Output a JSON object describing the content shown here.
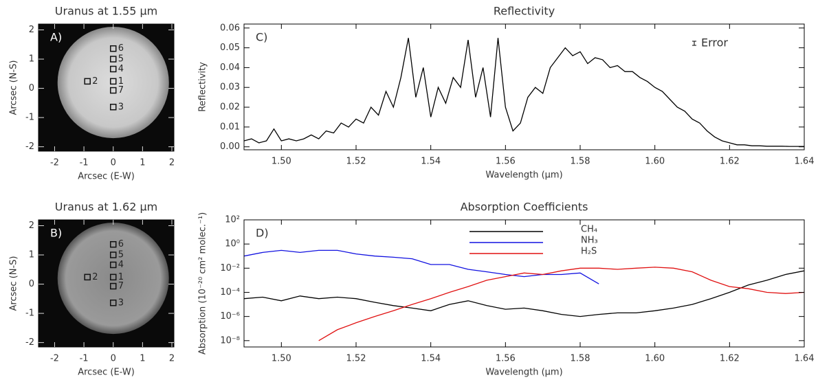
{
  "chart_data": [
    {
      "type": "image",
      "title": "Uranus at 1.55 μm",
      "panel": "A)",
      "xlabel": "Arcsec (E-W)",
      "ylabel": "Arcsec (N-S)",
      "xlim": [
        -2.55,
        2.07
      ],
      "ylim": [
        -2.15,
        2.2
      ],
      "xticks": [
        -2,
        -1,
        0,
        1,
        2
      ],
      "yticks": [
        -2,
        -1,
        0,
        1,
        2
      ],
      "points": [
        {
          "label": "6",
          "x": 0,
          "y": 1.36
        },
        {
          "label": "5",
          "x": 0,
          "y": 1.0
        },
        {
          "label": "4",
          "x": 0,
          "y": 0.66
        },
        {
          "label": "2",
          "x": -0.88,
          "y": 0.24
        },
        {
          "label": "1",
          "x": 0,
          "y": 0.24
        },
        {
          "label": "7",
          "x": 0,
          "y": -0.07
        },
        {
          "label": "3",
          "x": 0,
          "y": -0.64
        }
      ]
    },
    {
      "type": "image",
      "title": "Uranus at 1.62 μm",
      "panel": "B)",
      "xlabel": "Arcsec (E-W)",
      "ylabel": "Arcsec (N-S)",
      "xlim": [
        -2.55,
        2.07
      ],
      "ylim": [
        -2.15,
        2.2
      ],
      "xticks": [
        -2,
        -1,
        0,
        1,
        2
      ],
      "yticks": [
        -2,
        -1,
        0,
        1,
        2
      ],
      "points": [
        {
          "label": "6",
          "x": 0,
          "y": 1.36
        },
        {
          "label": "5",
          "x": 0,
          "y": 1.0
        },
        {
          "label": "4",
          "x": 0,
          "y": 0.66
        },
        {
          "label": "2",
          "x": -0.88,
          "y": 0.24
        },
        {
          "label": "1",
          "x": 0,
          "y": 0.24
        },
        {
          "label": "7",
          "x": 0,
          "y": -0.07
        },
        {
          "label": "3",
          "x": 0,
          "y": -0.64
        }
      ]
    },
    {
      "type": "line",
      "title": "Reflectivity",
      "panel": "C)",
      "xlabel": "Wavelength (μm)",
      "ylabel": "Reflectivity",
      "annotation": "Error",
      "xlim": [
        1.49,
        1.64
      ],
      "ylim": [
        -0.0015,
        0.062
      ],
      "xticks": [
        {
          "value": 1.5,
          "label": "1.50"
        },
        1.52,
        1.54,
        1.56,
        1.58,
        {
          "value": 1.6,
          "label": "1.60"
        },
        1.62,
        1.64
      ],
      "yticks": [
        {
          "value": 0,
          "label": "0.00"
        },
        0.01,
        0.02,
        0.03,
        0.04,
        0.05,
        0.06
      ],
      "color": "#000000",
      "x": [
        1.49,
        1.492,
        1.494,
        1.496,
        1.498,
        1.5,
        1.502,
        1.504,
        1.506,
        1.508,
        1.51,
        1.512,
        1.514,
        1.516,
        1.518,
        1.52,
        1.522,
        1.524,
        1.526,
        1.528,
        1.53,
        1.532,
        1.534,
        1.536,
        1.538,
        1.54,
        1.542,
        1.544,
        1.546,
        1.548,
        1.55,
        1.552,
        1.554,
        1.556,
        1.558,
        1.56,
        1.562,
        1.564,
        1.566,
        1.568,
        1.57,
        1.572,
        1.574,
        1.576,
        1.578,
        1.58,
        1.582,
        1.584,
        1.586,
        1.588,
        1.59,
        1.592,
        1.594,
        1.596,
        1.598,
        1.6,
        1.602,
        1.604,
        1.606,
        1.608,
        1.61,
        1.612,
        1.614,
        1.616,
        1.618,
        1.62,
        1.622,
        1.624,
        1.626,
        1.628,
        1.63,
        1.632,
        1.634,
        1.636,
        1.638,
        1.64
      ],
      "values": [
        0.003,
        0.004,
        0.002,
        0.003,
        0.009,
        0.003,
        0.004,
        0.003,
        0.004,
        0.006,
        0.004,
        0.008,
        0.007,
        0.012,
        0.01,
        0.014,
        0.012,
        0.02,
        0.016,
        0.028,
        0.02,
        0.035,
        0.055,
        0.025,
        0.04,
        0.015,
        0.03,
        0.022,
        0.035,
        0.03,
        0.054,
        0.025,
        0.04,
        0.015,
        0.055,
        0.02,
        0.008,
        0.012,
        0.025,
        0.03,
        0.027,
        0.04,
        0.045,
        0.05,
        0.046,
        0.048,
        0.042,
        0.045,
        0.044,
        0.04,
        0.041,
        0.038,
        0.038,
        0.035,
        0.033,
        0.03,
        0.028,
        0.024,
        0.02,
        0.018,
        0.014,
        0.012,
        0.008,
        0.005,
        0.003,
        0.002,
        0.001,
        0.001,
        0.0005,
        0.0005,
        0.0003,
        0.0003,
        0.0003,
        0.0002,
        0.0002,
        0.0002
      ]
    },
    {
      "type": "line",
      "title": "Absorption Coefficients",
      "panel": "D)",
      "xlabel": "Wavelength (μm)",
      "ylabel": "Absorption (10⁻²⁰ cm² molec.⁻¹)",
      "log": true,
      "xlim": [
        1.49,
        1.64
      ],
      "ylim": [
        3e-09,
        100
      ],
      "xticks": [
        {
          "value": 1.5,
          "label": "1.50"
        },
        1.52,
        1.54,
        1.56,
        1.58,
        {
          "value": 1.6,
          "label": "1.60"
        },
        1.62,
        1.64
      ],
      "yticks": [
        {
          "value": 100,
          "label": "10²"
        },
        {
          "value": 1,
          "label": "10⁰"
        },
        {
          "value": 0.01,
          "label": "10⁻²"
        },
        {
          "value": 0.0001,
          "label": "10⁻⁴"
        },
        {
          "value": 1e-06,
          "label": "10⁻⁶"
        },
        {
          "value": 1e-08,
          "label": "10⁻⁸"
        }
      ],
      "x": [
        1.49,
        1.495,
        1.5,
        1.505,
        1.51,
        1.515,
        1.52,
        1.525,
        1.53,
        1.535,
        1.54,
        1.545,
        1.55,
        1.555,
        1.56,
        1.565,
        1.57,
        1.575,
        1.58,
        1.585,
        1.59,
        1.595,
        1.6,
        1.605,
        1.61,
        1.615,
        1.62,
        1.625,
        1.63,
        1.635,
        1.64
      ],
      "series": [
        {
          "name": "CH₄",
          "color": "#000000",
          "values": [
            3e-05,
            4e-05,
            2e-05,
            5e-05,
            3e-05,
            4e-05,
            3e-05,
            1.5e-05,
            8e-06,
            5e-06,
            3e-06,
            1e-05,
            2e-05,
            8e-06,
            4e-06,
            5e-06,
            3e-06,
            1.5e-06,
            1e-06,
            1.5e-06,
            2e-06,
            2e-06,
            3e-06,
            5e-06,
            1e-05,
            3e-05,
            0.0001,
            0.0004,
            0.001,
            0.003,
            0.006
          ]
        },
        {
          "name": "NH₃",
          "color": "#1010e0",
          "values": [
            0.1,
            0.2,
            0.3,
            0.2,
            0.3,
            0.3,
            0.15,
            0.1,
            0.08,
            0.06,
            0.02,
            0.02,
            0.008,
            0.005,
            0.003,
            0.002,
            0.003,
            0.003,
            0.004,
            0.0005,
            null,
            null,
            null,
            null,
            null,
            null,
            null,
            null,
            null,
            null,
            null
          ]
        },
        {
          "name": "H₂S",
          "color": "#e01010",
          "values": [
            null,
            null,
            null,
            null,
            1e-08,
            8e-08,
            3e-07,
            1e-06,
            3e-06,
            1e-05,
            3e-05,
            0.0001,
            0.0003,
            0.001,
            0.002,
            0.004,
            0.003,
            0.006,
            0.01,
            0.01,
            0.008,
            0.01,
            0.012,
            0.01,
            0.005,
            0.001,
            0.0003,
            0.0002,
            0.0001,
            8e-05,
            0.0001
          ]
        }
      ]
    }
  ]
}
